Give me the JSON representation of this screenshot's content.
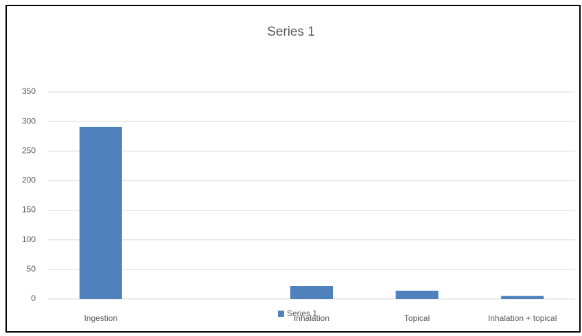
{
  "chart_data": {
    "type": "bar",
    "title": "Series 1",
    "categories": [
      "Ingestion",
      null,
      "Inhalation",
      "Topical",
      "Inhalation + topical"
    ],
    "series": [
      {
        "name": "Series 1",
        "color": "#4f81bd",
        "values": [
          291,
          null,
          22,
          14,
          5
        ]
      }
    ],
    "ylim": [
      0,
      350
    ],
    "yticks": [
      0,
      50,
      100,
      150,
      200,
      250,
      300,
      350
    ],
    "grid": true,
    "legend": "bottom"
  }
}
